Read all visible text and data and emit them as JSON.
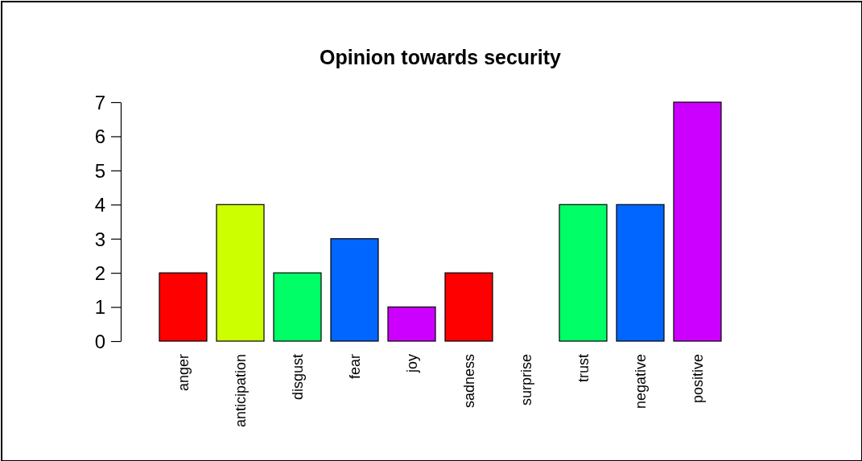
{
  "chart_data": {
    "type": "bar",
    "title": "Opinion towards security",
    "categories": [
      "anger",
      "anticipation",
      "disgust",
      "fear",
      "joy",
      "sadness",
      "surprise",
      "trust",
      "negative",
      "positive"
    ],
    "values": [
      2,
      4,
      2,
      3,
      1,
      2,
      0,
      4,
      4,
      7
    ],
    "colors": [
      "#ff0000",
      "#ccff00",
      "#00ff66",
      "#0066ff",
      "#cc00ff",
      "#ff0000",
      "#ccff00",
      "#00ff66",
      "#0066ff",
      "#cc00ff"
    ],
    "ylim": [
      0,
      7
    ],
    "yticks": [
      0,
      1,
      2,
      3,
      4,
      5,
      6,
      7
    ],
    "grid": false
  }
}
